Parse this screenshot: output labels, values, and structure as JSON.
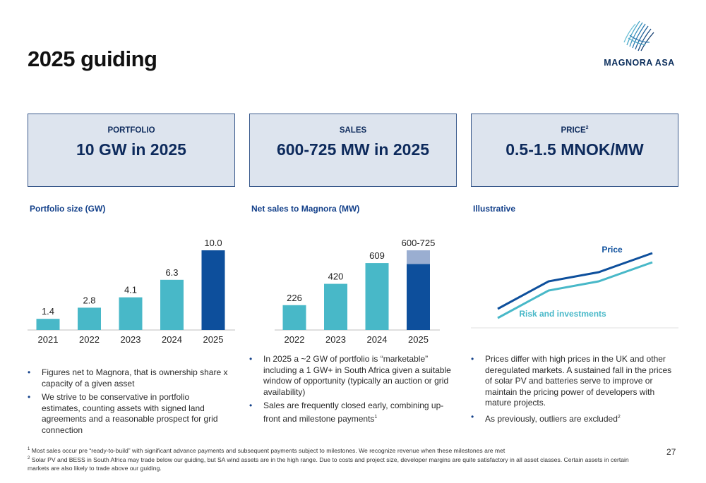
{
  "title": "2025 guiding",
  "logo": {
    "text": "MAGNORA ASA"
  },
  "kpis": [
    {
      "label": "PORTFOLIO",
      "sup": "",
      "value": "10 GW in 2025"
    },
    {
      "label": "SALES",
      "sup": "",
      "value": "600-725 MW in 2025"
    },
    {
      "label": "PRICE",
      "sup": "2",
      "value": "0.5-1.5 MNOK/MW"
    }
  ],
  "sections": {
    "portfolio": "Portfolio size (GW)",
    "sales": "Net sales to Magnora (MW)",
    "illustrative": "Illustrative"
  },
  "chart_data": [
    {
      "type": "bar",
      "title": "Portfolio size (GW)",
      "categories": [
        "2021",
        "2022",
        "2023",
        "2024",
        "2025"
      ],
      "values": [
        1.4,
        2.8,
        4.1,
        6.3,
        10.0
      ],
      "labels": [
        "1.4",
        "2.8",
        "4.1",
        "6.3",
        "10.0"
      ],
      "colors": [
        "#48b8c8",
        "#48b8c8",
        "#48b8c8",
        "#48b8c8",
        "#0d4f9c"
      ],
      "ylim": [
        0,
        10
      ]
    },
    {
      "type": "bar",
      "title": "Net sales to Magnora (MW)",
      "categories": [
        "2022",
        "2023",
        "2024",
        "2025"
      ],
      "values": [
        226,
        420,
        609,
        600
      ],
      "range_top": [
        null,
        null,
        null,
        725
      ],
      "labels": [
        "226",
        "420",
        "609",
        "600-725"
      ],
      "colors": [
        "#48b8c8",
        "#48b8c8",
        "#48b8c8",
        "#0d4f9c"
      ],
      "range_color": "#9aaed1",
      "ylim": [
        0,
        725
      ]
    },
    {
      "type": "line",
      "title": "Illustrative",
      "series": [
        {
          "name": "Price",
          "color": "#0d4f9c"
        },
        {
          "name": "Risk and investments",
          "color": "#48b8c8"
        }
      ]
    }
  ],
  "bullets": {
    "col1": [
      {
        "text": "Figures net to Magnora, that is ownership share x capacity of a given asset",
        "sup": ""
      },
      {
        "text": "We strive to be conservative in portfolio estimates, counting assets with signed land agreements and a reasonable prospect for grid connection",
        "sup": ""
      }
    ],
    "col2": [
      {
        "text": "In 2025 a ~2 GW of portfolio is “marketable” including a 1 GW+ in South Africa given a suitable window of opportunity (typically an auction or grid availability)",
        "sup": ""
      },
      {
        "text": "Sales are frequently closed early, combining up-front and milestone payments",
        "sup": "1"
      }
    ],
    "col3": [
      {
        "text": "Prices differ with high prices in the UK and other deregulated markets. A sustained fall in the prices of solar PV and batteries serve to improve or maintain the pricing power of developers with mature projects.",
        "sup": ""
      },
      {
        "text": "As previously, outliers are excluded",
        "sup": "2"
      }
    ]
  },
  "footnotes": [
    {
      "num": "1",
      "text": "Most sales occur pre “ready-to-build” with significant advance payments and subsequent payments subject to milestones. We recognize revenue when these milestones are met"
    },
    {
      "num": "2",
      "text": "Solar PV and BESS in South Africa may trade below our guiding, but SA wind assets are in the high range. Due to costs and project size, developer margins are quite satisfactory in all asset classes. Certain assets in certain markets are also likely to trade above our guiding."
    }
  ],
  "page_number": "27",
  "bullet_glyph": "•"
}
